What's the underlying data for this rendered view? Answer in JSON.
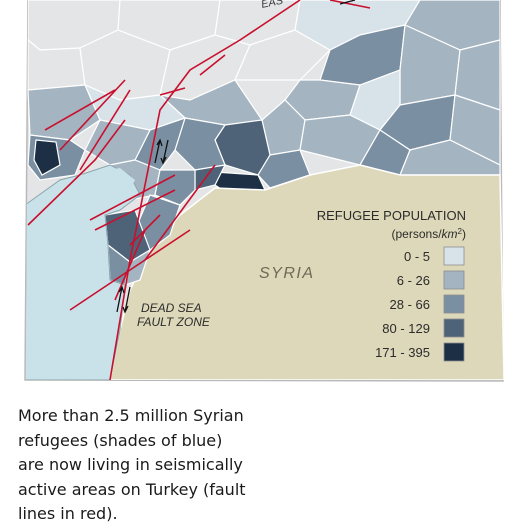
{
  "map": {
    "region_labels": {
      "syria": "SYRIA",
      "east_partial": "EAS"
    },
    "fault_zone_label": {
      "line1": "DEAD SEA",
      "line2": "FAULT ZONE"
    },
    "legend": {
      "title": "REFUGEE POPULATION",
      "units_prefix": "(persons/",
      "units_unit": "km",
      "units_exp": "2",
      "units_suffix": ")",
      "items": [
        {
          "label": "0 - 5",
          "color": "#d8e2e9"
        },
        {
          "label": "6 - 26",
          "color": "#a4b4c1"
        },
        {
          "label": "28 - 66",
          "color": "#7b8fa2"
        },
        {
          "label": "80 - 129",
          "color": "#4f6378"
        },
        {
          "label": "171 - 395",
          "color": "#1c2f45"
        }
      ]
    },
    "colors": {
      "turkey_land": "#e3e5e6",
      "syria_land": "#ddd8ba",
      "sea": "#c9e2ea",
      "fault": "#c8102e",
      "border": "#9a9a9a"
    }
  },
  "caption": {
    "text": "More than 2.5 million Syrian refugees (shades of blue) are now living in seismically active areas on Turkey (fault lines in red)."
  }
}
